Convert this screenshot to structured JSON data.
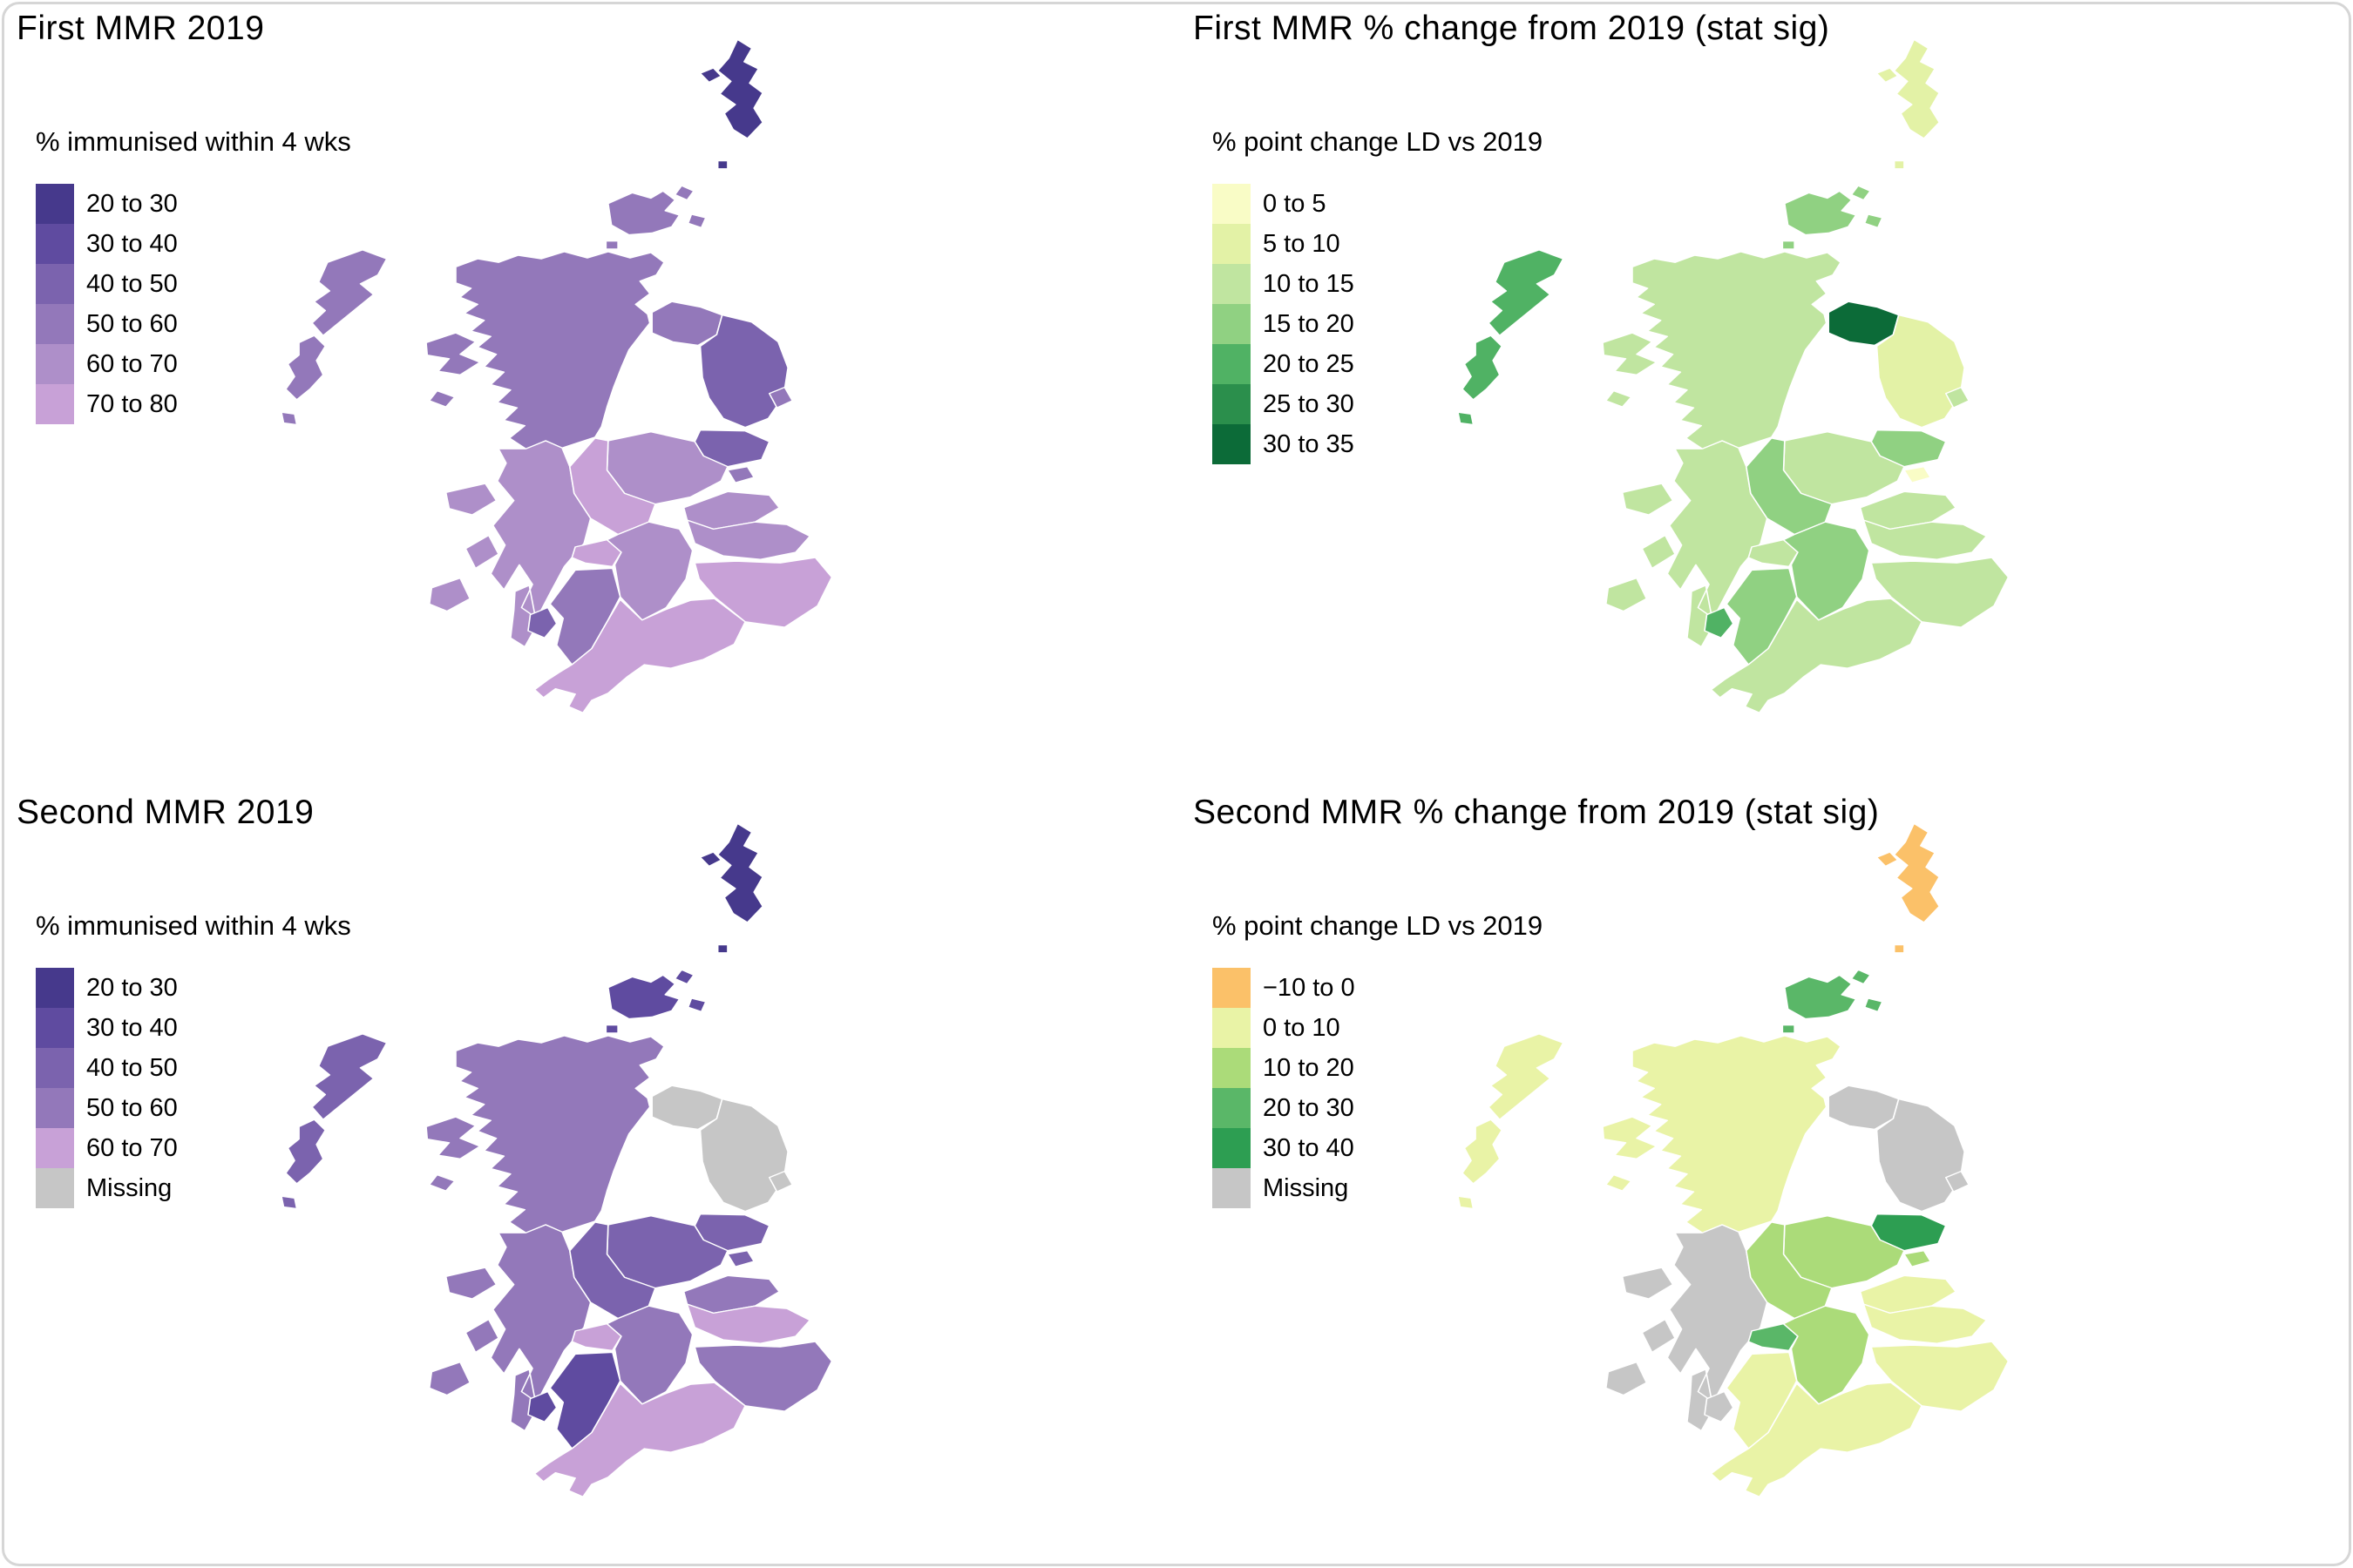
{
  "figure": {
    "type": "choropleth-map-grid",
    "subject": "Scotland MMR immunisation by area",
    "missing_color": "#c6c6c6"
  },
  "chart_data": {
    "type": "heatmap",
    "note": "Four choropleth maps of Scotland; values are the legend class assigned to each area",
    "panels": [
      "First MMR 2019",
      "First MMR % change from 2019 (stat sig)",
      "Second MMR 2019",
      "Second MMR % change from 2019 (stat sig)"
    ]
  },
  "panels": [
    {
      "id": "first-mmr-2019",
      "title": "First MMR 2019",
      "legend_title": "% immunised within 4 wks",
      "legend": [
        {
          "label": "20 to 30",
          "color": "#46398c"
        },
        {
          "label": "30 to 40",
          "color": "#5f4ba0"
        },
        {
          "label": "40 to 50",
          "color": "#7b63ae"
        },
        {
          "label": "50 to 60",
          "color": "#9378ba"
        },
        {
          "label": "60 to 70",
          "color": "#ae8fc9"
        },
        {
          "label": "70 to 80",
          "color": "#c8a1d7"
        }
      ],
      "regions": {
        "shetland": "20 to 30",
        "orkney": "50 to 60",
        "western_isles": "50 to 60",
        "highland": "50 to 60",
        "moray": "50 to 60",
        "aberdeenshire": "40 to 50",
        "aberdeen_city": "50 to 60",
        "angus": "40 to 50",
        "dundee": "50 to 60",
        "perth_kinross": "60 to 70",
        "fife": "60 to 70",
        "stirling": "70 to 80",
        "argyll": "60 to 70",
        "glasgow": "70 to 80",
        "lanarkshire": "60 to 70",
        "lothian": "60 to 70",
        "borders": "70 to 80",
        "ayrshire": "50 to 60",
        "arran": "40 to 50",
        "dumfries_galloway": "70 to 80"
      }
    },
    {
      "id": "first-mmr-change",
      "title": "First MMR % change from 2019 (stat sig)",
      "legend_title": "% point change LD vs 2019",
      "legend": [
        {
          "label": "0 to 5",
          "color": "#f9fcc6"
        },
        {
          "label": "5 to 10",
          "color": "#e3f2a6"
        },
        {
          "label": "10 to 15",
          "color": "#c0e5a0"
        },
        {
          "label": "15 to 20",
          "color": "#90d182"
        },
        {
          "label": "20 to 25",
          "color": "#50b264"
        },
        {
          "label": "25 to 30",
          "color": "#2b8f4c"
        },
        {
          "label": "30 to 35",
          "color": "#0c6b38"
        }
      ],
      "regions": {
        "shetland": "5 to 10",
        "orkney": "15 to 20",
        "western_isles": "20 to 25",
        "highland": "10 to 15",
        "moray": "30 to 35",
        "aberdeenshire": "5 to 10",
        "aberdeen_city": "10 to 15",
        "angus": "15 to 20",
        "dundee": "0 to 5",
        "perth_kinross": "10 to 15",
        "fife": "10 to 15",
        "stirling": "15 to 20",
        "argyll": "10 to 15",
        "glasgow": "10 to 15",
        "lanarkshire": "15 to 20",
        "lothian": "10 to 15",
        "borders": "10 to 15",
        "ayrshire": "15 to 20",
        "arran": "20 to 25",
        "dumfries_galloway": "10 to 15"
      }
    },
    {
      "id": "second-mmr-2019",
      "title": "Second MMR 2019",
      "legend_title": "% immunised within 4 wks",
      "legend": [
        {
          "label": "20 to 30",
          "color": "#46398c"
        },
        {
          "label": "30 to 40",
          "color": "#5f4ba0"
        },
        {
          "label": "40 to 50",
          "color": "#7b63ae"
        },
        {
          "label": "50 to 60",
          "color": "#9378ba"
        },
        {
          "label": "60 to 70",
          "color": "#c8a1d7"
        },
        {
          "label": "Missing",
          "color": "#c6c6c6"
        }
      ],
      "regions": {
        "shetland": "20 to 30",
        "orkney": "30 to 40",
        "western_isles": "40 to 50",
        "highland": "50 to 60",
        "moray": "Missing",
        "aberdeenshire": "Missing",
        "aberdeen_city": "Missing",
        "angus": "40 to 50",
        "dundee": "40 to 50",
        "perth_kinross": "40 to 50",
        "fife": "50 to 60",
        "stirling": "40 to 50",
        "argyll": "50 to 60",
        "glasgow": "60 to 70",
        "lanarkshire": "50 to 60",
        "lothian": "60 to 70",
        "borders": "50 to 60",
        "ayrshire": "30 to 40",
        "arran": "30 to 40",
        "dumfries_galloway": "60 to 70"
      }
    },
    {
      "id": "second-mmr-change",
      "title": "Second MMR % change from 2019 (stat sig)",
      "legend_title": "% point change LD vs 2019",
      "legend": [
        {
          "label": "−10 to 0",
          "color": "#fbc169"
        },
        {
          "label": "0 to 10",
          "color": "#e9f3a6"
        },
        {
          "label": "10 to 20",
          "color": "#abdb79"
        },
        {
          "label": "20 to 30",
          "color": "#5ab768"
        },
        {
          "label": "30 to 40",
          "color": "#2d9e52"
        },
        {
          "label": "Missing",
          "color": "#c6c6c6"
        }
      ],
      "regions": {
        "shetland": "−10 to 0",
        "orkney": "20 to 30",
        "western_isles": "0 to 10",
        "highland": "0 to 10",
        "moray": "Missing",
        "aberdeenshire": "Missing",
        "aberdeen_city": "Missing",
        "angus": "30 to 40",
        "dundee": "10 to 20",
        "perth_kinross": "10 to 20",
        "fife": "0 to 10",
        "stirling": "10 to 20",
        "argyll": "Missing",
        "glasgow": "20 to 30",
        "lanarkshire": "10 to 20",
        "lothian": "0 to 10",
        "borders": "0 to 10",
        "ayrshire": "0 to 10",
        "arran": "Missing",
        "dumfries_galloway": "0 to 10"
      }
    }
  ]
}
